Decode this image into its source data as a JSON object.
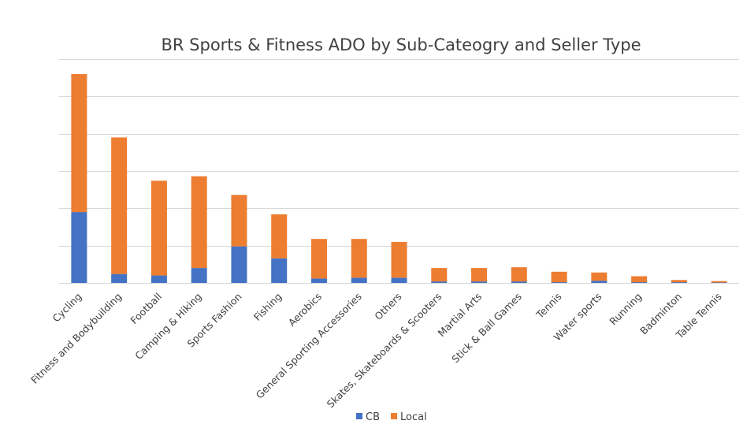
{
  "chart_data": {
    "type": "bar",
    "stacked": true,
    "title": "BR Sports & Fitness ADO by Sub-Cateogry and Seller Type",
    "xlabel": "",
    "ylabel": "",
    "ylim": [
      0,
      300
    ],
    "ytick_step": 50,
    "y_tick_labels_visible": false,
    "grid": true,
    "legend_position": "bottom",
    "categories": [
      "Cycling",
      "Fitness and Bodybuilding",
      "Football",
      "Camping & Hiking",
      "Sports Fashion",
      "Fishing",
      "Aerobics",
      "General Sporting Accessories",
      "Others",
      "Skates, Skateboards & Scooters",
      "Martial Arts",
      "Stick & Ball Games",
      "Tennis",
      "Water sports",
      "Running",
      "Badminton",
      "Table Tennis"
    ],
    "series": [
      {
        "name": "CB",
        "color": "#4472c4",
        "values": [
          95,
          12,
          10,
          20,
          49,
          33,
          6,
          7,
          7,
          2,
          2,
          2,
          1,
          3,
          1,
          1,
          0.5
        ]
      },
      {
        "name": "Local",
        "color": "#ed7d31",
        "values": [
          185,
          183,
          127,
          123,
          69,
          59,
          53,
          52,
          48,
          18,
          18,
          19,
          14,
          11,
          8,
          3,
          2
        ]
      }
    ]
  }
}
